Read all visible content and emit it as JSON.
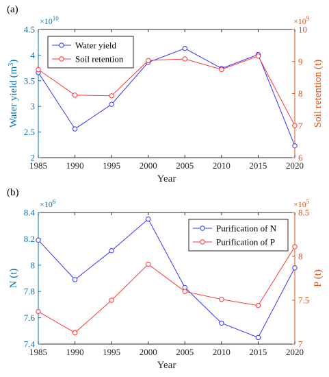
{
  "colors": {
    "left_axis": "#0072BD",
    "right_axis": "#D95319",
    "series1": "#3333FF",
    "series2": "#FF3333",
    "axis": "#262626"
  },
  "chart_data": [
    {
      "type": "line",
      "panel_label": "(a)",
      "x": [
        1985,
        1990,
        1995,
        2000,
        2005,
        2010,
        2015,
        2020
      ],
      "xlabel": "Year",
      "xlim": [
        1985,
        2020
      ],
      "x_ticks": [
        "1985",
        "1990",
        "1995",
        "2000",
        "2005",
        "2010",
        "2015",
        "2020"
      ],
      "left_axis": {
        "label_main": "Water yield (m",
        "label_sup": "3",
        "label_end": ")",
        "multiplier_base": "×10",
        "multiplier_exp": "10",
        "ylim": [
          2,
          4.5
        ],
        "ticks": [
          "2",
          "2.5",
          "3",
          "3.5",
          "4",
          "4.5"
        ]
      },
      "right_axis": {
        "label": "Soil retention (t)",
        "multiplier_base": "×10",
        "multiplier_exp": "9",
        "ylim": [
          6,
          10
        ],
        "ticks": [
          "6",
          "7",
          "8",
          "9",
          "10"
        ]
      },
      "legend_position": "top-left",
      "series": [
        {
          "name": "Water yield",
          "axis": "left",
          "values": [
            3.66,
            2.56,
            3.04,
            3.86,
            4.13,
            3.74,
            4.01,
            2.23
          ]
        },
        {
          "name": "Soil retention",
          "axis": "right",
          "values": [
            8.75,
            7.95,
            7.93,
            9.03,
            9.08,
            8.75,
            9.17,
            7.0
          ]
        }
      ]
    },
    {
      "type": "line",
      "panel_label": "(b)",
      "x": [
        1985,
        1990,
        1995,
        2000,
        2005,
        2010,
        2015,
        2020
      ],
      "xlabel": "Year",
      "xlim": [
        1985,
        2020
      ],
      "x_ticks": [
        "1985",
        "1990",
        "1995",
        "2000",
        "2005",
        "2010",
        "2015",
        "2020"
      ],
      "left_axis": {
        "label_main": "N (t)",
        "label_sup": "",
        "label_end": "",
        "multiplier_base": "×10",
        "multiplier_exp": "6",
        "ylim": [
          7.4,
          8.4
        ],
        "ticks": [
          "7.4",
          "7.6",
          "7.8",
          "8",
          "8.2",
          "8.4"
        ]
      },
      "right_axis": {
        "label": "P (t)",
        "multiplier_base": "×10",
        "multiplier_exp": "5",
        "ylim": [
          7,
          8.5
        ],
        "ticks": [
          "7",
          "7.5",
          "8",
          "8.5"
        ]
      },
      "legend_position": "top-right",
      "series": [
        {
          "name": "Purification of N",
          "axis": "left",
          "values": [
            8.19,
            7.89,
            8.11,
            8.35,
            7.83,
            7.56,
            7.45,
            7.98
          ]
        },
        {
          "name": "Purification of P",
          "axis": "right",
          "values": [
            7.37,
            7.13,
            7.5,
            7.91,
            7.6,
            7.51,
            7.44,
            8.11
          ]
        }
      ]
    }
  ]
}
